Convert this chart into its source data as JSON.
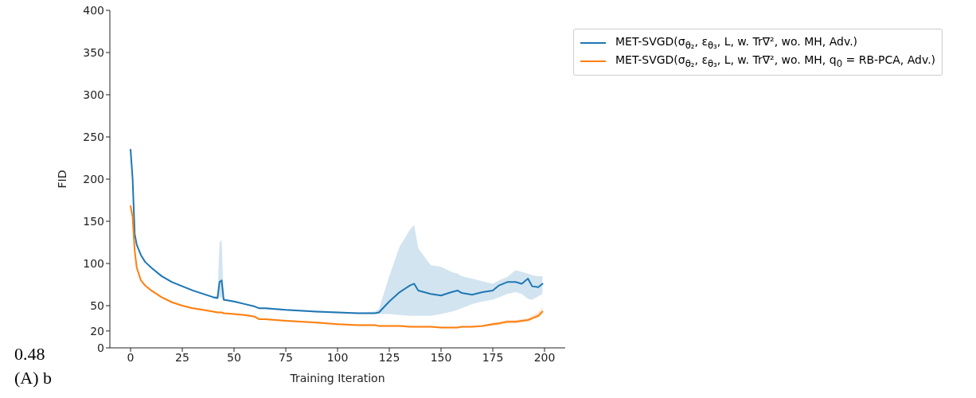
{
  "chart_data": {
    "type": "line",
    "xlabel": "Training Iteration",
    "ylabel": "FID",
    "x": [
      0,
      1,
      2,
      3,
      5,
      7,
      10,
      15,
      20,
      25,
      30,
      35,
      40,
      42,
      43,
      44,
      45,
      50,
      55,
      60,
      62,
      65,
      75,
      90,
      100,
      110,
      118,
      120,
      125,
      130,
      135,
      137,
      139,
      145,
      150,
      155,
      158,
      160,
      165,
      170,
      175,
      178,
      182,
      186,
      189,
      192,
      194,
      197,
      199
    ],
    "series": [
      {
        "name": "MET-SVGD(σ$_{θ₂}$, ε$_{θ₃}$, L, w. Tr∇², wo. MH, Adv.)",
        "color": "#1f77b4",
        "values": [
          235,
          200,
          135,
          122,
          110,
          102,
          95,
          85,
          78,
          73,
          68,
          64,
          60,
          59,
          78,
          80,
          57,
          55,
          52,
          49,
          47,
          47,
          45,
          43,
          42,
          41,
          41,
          42,
          55,
          66,
          74,
          76,
          68,
          64,
          62,
          66,
          68,
          65,
          63,
          66,
          68,
          74,
          78,
          78,
          76,
          82,
          73,
          72,
          76
        ],
        "lower": [
          234,
          198,
          133,
          121,
          109,
          101,
          94,
          84,
          77,
          72,
          67,
          63,
          59,
          58,
          60,
          60,
          56,
          54,
          51,
          48,
          46,
          46,
          44,
          42,
          41,
          40,
          40,
          40,
          40,
          39,
          38,
          38,
          38,
          38,
          40,
          43,
          45,
          47,
          52,
          55,
          57,
          60,
          64,
          66,
          64,
          58,
          57,
          61,
          64
        ],
        "upper": [
          237,
          202,
          137,
          124,
          111,
          103,
          96,
          86,
          79,
          74,
          69,
          65,
          61,
          62,
          125,
          128,
          58,
          56,
          53,
          50,
          48,
          48,
          46,
          44,
          43,
          42,
          43,
          46,
          85,
          120,
          140,
          146,
          118,
          98,
          96,
          90,
          88,
          85,
          82,
          79,
          76,
          80,
          84,
          92,
          90,
          88,
          86,
          85,
          85
        ]
      },
      {
        "name": "MET-SVGD(σ$_{θ₂}$, ε$_{θ₃}$, L, w. Tr∇², wo. MH, q$_{0}$ = RB-PCA, Adv.)",
        "color": "#ff7f0e",
        "values": [
          168,
          155,
          115,
          95,
          80,
          74,
          68,
          60,
          54,
          50,
          47,
          45,
          43,
          42,
          42,
          42,
          41,
          40,
          39,
          37,
          34,
          34,
          32,
          30,
          28,
          27,
          27,
          26,
          26,
          26,
          25,
          25,
          25,
          25,
          24,
          24,
          24,
          25,
          25,
          26,
          28,
          29,
          31,
          31,
          32,
          33,
          35,
          38,
          43
        ],
        "lower": [
          167,
          154,
          114,
          94,
          79,
          73,
          67,
          59,
          53,
          49,
          46,
          44,
          42,
          41,
          41,
          41,
          40,
          39,
          38,
          36,
          33,
          33,
          31,
          29,
          27,
          26,
          26,
          25,
          25,
          25,
          24,
          24,
          24,
          24,
          23,
          23,
          23,
          24,
          24,
          25,
          26,
          27,
          29,
          29,
          30,
          31,
          33,
          36,
          40
        ],
        "upper": [
          169,
          156,
          116,
          96,
          81,
          75,
          69,
          61,
          55,
          51,
          48,
          46,
          44,
          43,
          43,
          43,
          42,
          41,
          40,
          38,
          35,
          35,
          33,
          31,
          29,
          28,
          28,
          27,
          27,
          27,
          26,
          26,
          26,
          26,
          25,
          25,
          25,
          26,
          26,
          27,
          30,
          31,
          33,
          33,
          34,
          35,
          38,
          42,
          48
        ]
      }
    ],
    "xlim": [
      -10,
      210
    ],
    "xticks": [
      0,
      25,
      50,
      75,
      100,
      125,
      150,
      175,
      200
    ],
    "ylim": [
      0,
      400
    ],
    "yticks": [
      0,
      20,
      50,
      100,
      150,
      200,
      250,
      300,
      350,
      400
    ],
    "grid": false,
    "legend": "top right",
    "annotations": [
      "0.48",
      "(A) b"
    ]
  }
}
